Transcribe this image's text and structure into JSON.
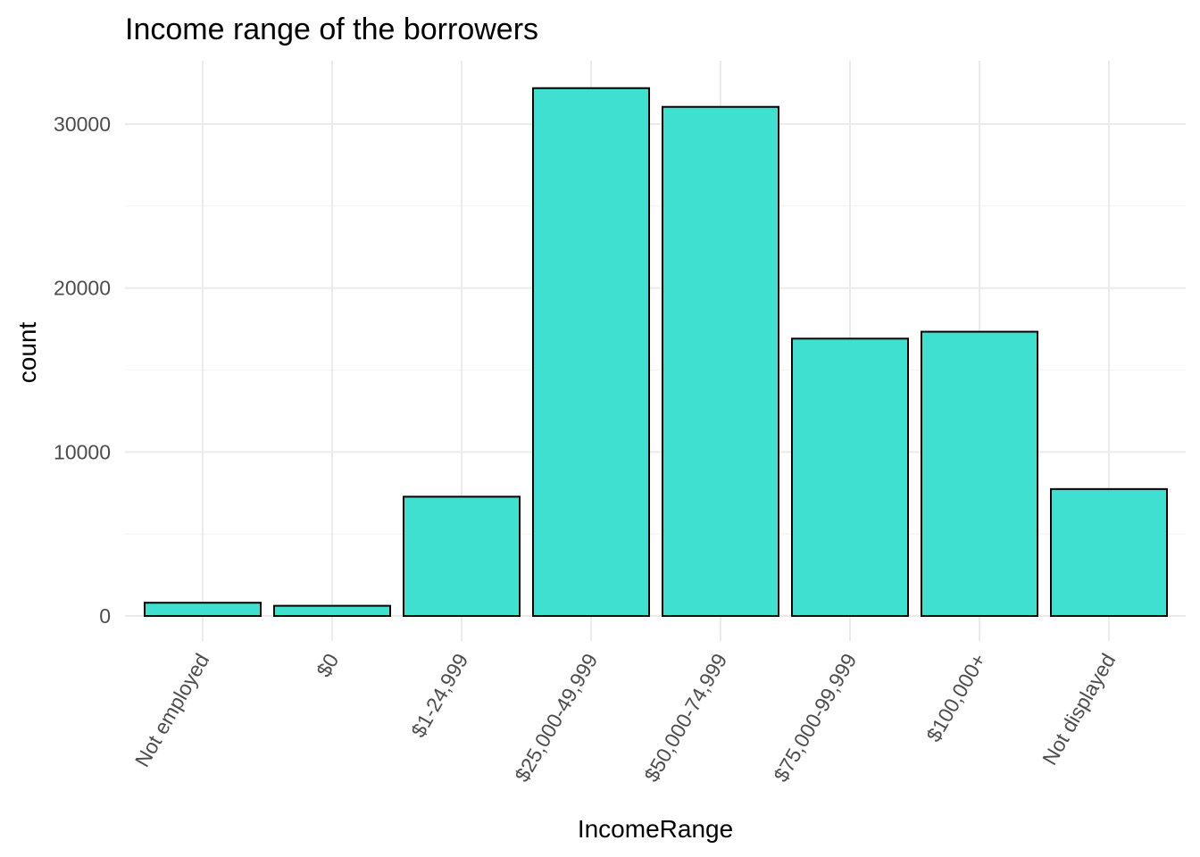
{
  "chart_data": {
    "type": "bar",
    "title": "Income range of the borrowers",
    "xlabel": "IncomeRange",
    "ylabel": "count",
    "categories": [
      "Not employed",
      "$0",
      "$1-24,999",
      "$25,000-49,999",
      "$50,000-74,999",
      "$75,000-99,999",
      "$100,000+",
      "Not displayed"
    ],
    "values": [
      806,
      621,
      7274,
      32192,
      31050,
      16916,
      17337,
      7741
    ],
    "ylim": [
      0,
      32192
    ],
    "yticks": [
      0,
      10000,
      20000,
      30000
    ],
    "grid": true,
    "legend": "none",
    "bar_color": "#40E0D0",
    "bar_outline": "#000000"
  }
}
